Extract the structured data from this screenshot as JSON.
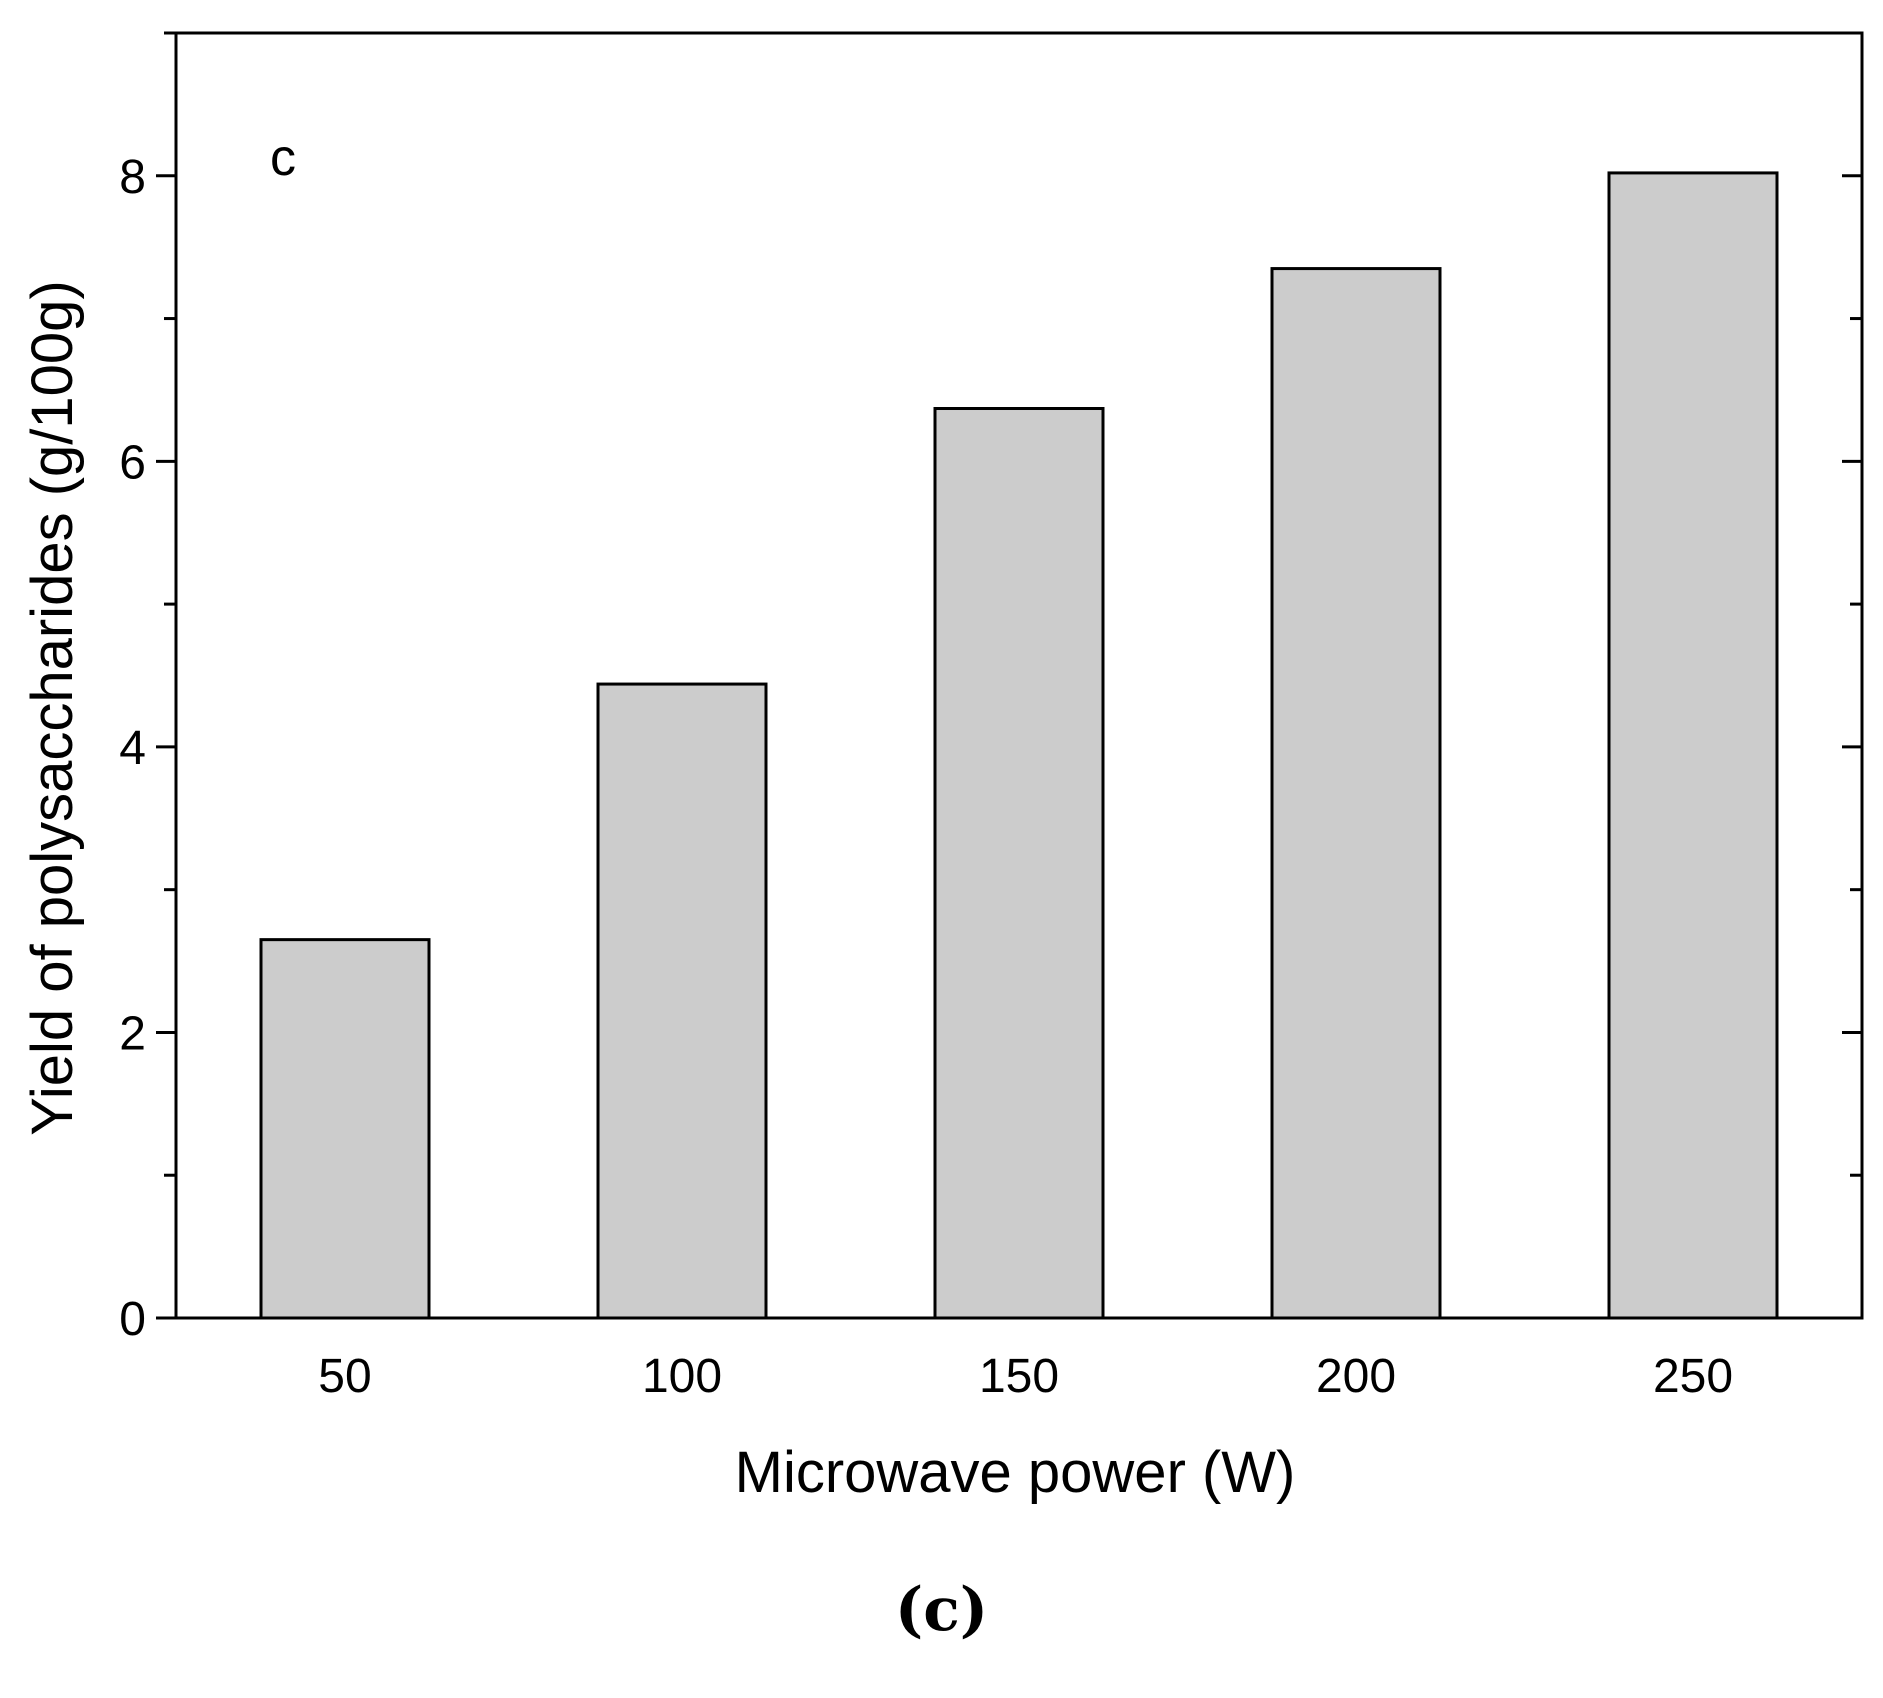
{
  "chart_data": {
    "type": "bar",
    "panel_label": "c",
    "categories": [
      "50",
      "100",
      "150",
      "200",
      "250"
    ],
    "values": [
      2.65,
      4.44,
      6.37,
      7.35,
      8.02
    ],
    "xlabel": "Microwave power (W)",
    "ylabel": "Yield of polysaccharides (g/100g)",
    "ylim": [
      0,
      9
    ],
    "yticks": [
      0,
      2,
      4,
      6,
      8
    ],
    "bar_color": "#cccccc",
    "edge_color": "#000000",
    "grid": false,
    "legend": false
  },
  "caption": "(c)"
}
